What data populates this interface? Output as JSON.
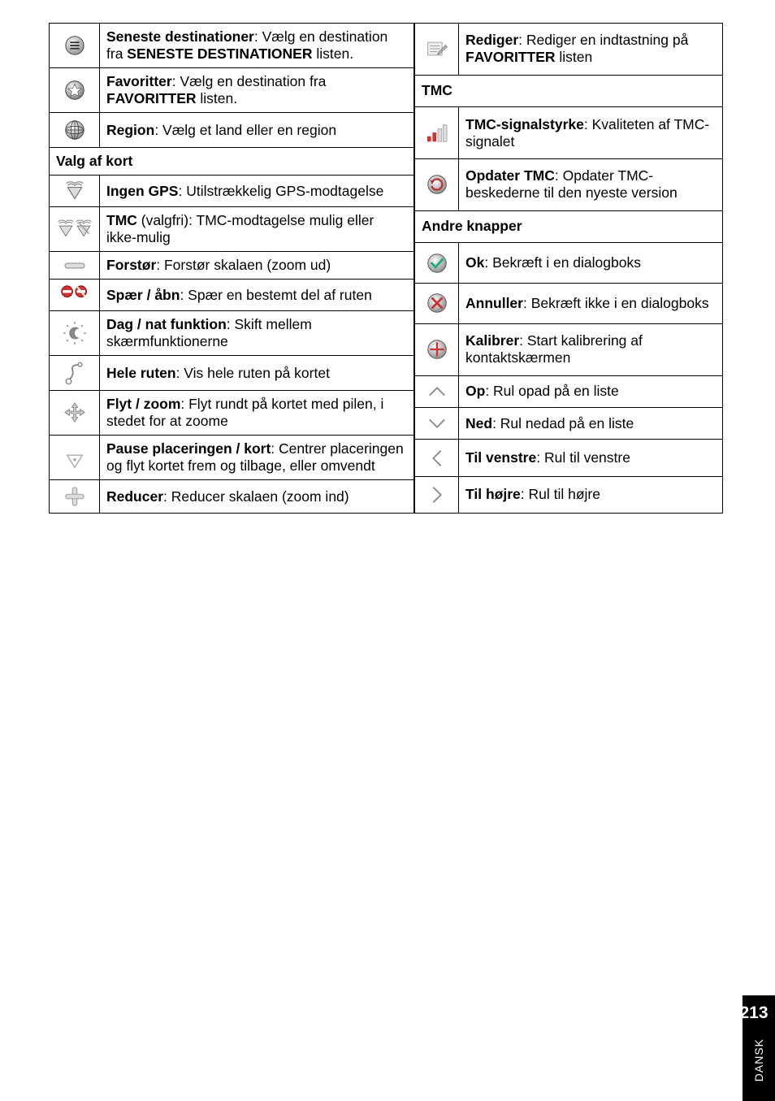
{
  "leftRows": [
    {
      "icon": "recent",
      "body": "<b>Seneste destinationer</b>: Vælg en destination fra <b>S<span style='font-variant:small-caps'>ENESTE DESTINATIONER</span></b> listen."
    },
    {
      "icon": "star",
      "body": "<b>Favoritter</b>: Vælg en destination fra <b>F<span style='font-variant:small-caps'>AVORITTER</span></b> listen."
    },
    {
      "icon": "globe",
      "body": "<b>Region</b>: Vælg et land eller en region"
    },
    {
      "header": "Valg af kort",
      "colspan": 2
    },
    {
      "icon": "nogps",
      "body": "<b>Ingen GPS</b>: Utilstrækkelig GPS-modtagelse"
    },
    {
      "icon": "tmc2",
      "body": "<b>TMC</b> (valgfri): TMC-modtagelse mulig eller ikke-mulig"
    },
    {
      "icon": "zoomout",
      "body": "<b>Forstør</b>: Forstør skalaen (zoom ud)"
    },
    {
      "icon": "block",
      "body": "<b>Spær / åbn</b>: Spær en bestemt del af ruten"
    },
    {
      "icon": "daynight",
      "body": "<b>Dag / nat funktion</b>: Skift mellem skærmfunktionerne"
    },
    {
      "icon": "route",
      "body": "<b>Hele ruten</b>: Vis hele ruten på kortet"
    },
    {
      "icon": "move",
      "body": "<b>Flyt / zoom</b>: Flyt rundt på kortet med pilen, i stedet for at zoome"
    },
    {
      "icon": "pause",
      "body": "<b>Pause placeringen / kort</b>: Centrer placeringen og flyt kortet frem og tilbage, eller omvendt"
    },
    {
      "icon": "zoomin",
      "body": "<b>Reducer</b>: Reducer skalaen (zoom ind)"
    }
  ],
  "rightRows": [
    {
      "icon": "edit",
      "body": "<b>Rediger</b>: Rediger en indtastning på <b>F<span style='font-variant:small-caps'>AVORITTER</span></b> listen"
    },
    {
      "header": "TMC",
      "colspan": 2
    },
    {
      "icon": "signal",
      "body": "<b>TMC-signalstyrke</b>: Kvaliteten af TMC-signalet"
    },
    {
      "icon": "refresh",
      "body": "<b>Opdater TMC</b>: Opdater TMC-beskederne til den nyeste version"
    },
    {
      "header": "Andre knapper",
      "colspan": 2
    },
    {
      "icon": "ok",
      "body": "<b>Ok</b>: Bekræft i en dialogboks"
    },
    {
      "icon": "cancel",
      "body": "<b>Annuller</b>: Bekræft ikke i en dialogboks"
    },
    {
      "icon": "calibrate",
      "body": "<b>Kalibrer</b>: Start kalibrering af kontaktskærmen"
    },
    {
      "icon": "up",
      "body": "<b>Op</b>: Rul opad på en liste"
    },
    {
      "icon": "down",
      "body": "<b>Ned</b>: Rul nedad på en liste"
    },
    {
      "icon": "left",
      "body": "<b>Til venstre</b>: Rul til venstre"
    },
    {
      "icon": "right",
      "body": "<b>Til højre</b>: Rul til højre"
    }
  ],
  "pageNumber": "213",
  "sideLabel": "DANSK"
}
